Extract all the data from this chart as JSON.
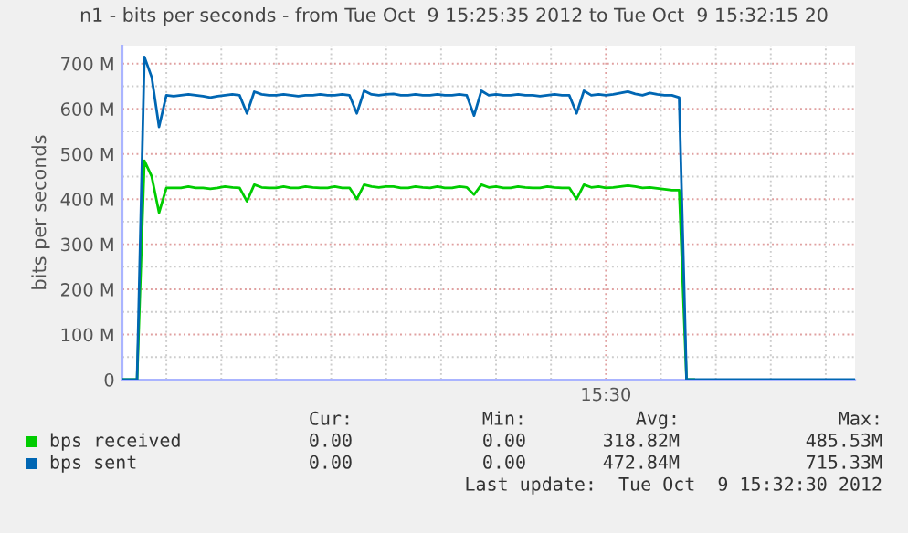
{
  "chart_data": {
    "type": "line",
    "title": "n1 - bits per seconds - from Tue Oct  9 15:25:35 2012 to Tue Oct  9 15:32:15 20",
    "ylabel": "bits per seconds",
    "categories": [
      null,
      null,
      null,
      null,
      null,
      null,
      null,
      null,
      null,
      null,
      null,
      null,
      null,
      null,
      null,
      null,
      null,
      null,
      null,
      null,
      null,
      null,
      null,
      null,
      null,
      null,
      null,
      null,
      null,
      null,
      null,
      null,
      null,
      null,
      null,
      null,
      null,
      null,
      null,
      null,
      null,
      null,
      null,
      null,
      null,
      null,
      null,
      null,
      null,
      null,
      null,
      null,
      null,
      null,
      null,
      null,
      null,
      null,
      null,
      null,
      null,
      null,
      null,
      null,
      null,
      null,
      "15:30",
      null,
      null,
      null,
      null,
      null,
      null,
      null,
      null,
      null,
      null,
      null,
      null,
      null,
      null,
      null,
      null,
      null,
      null,
      null,
      null,
      null,
      null,
      null,
      null,
      null,
      null,
      null,
      null,
      null,
      null,
      null,
      null,
      null,
      null
    ],
    "ylim": [
      0,
      740
    ],
    "yticks": [
      {
        "value": 0,
        "label": "0"
      },
      {
        "value": 50,
        "label": null
      },
      {
        "value": 100,
        "label": "100 M"
      },
      {
        "value": 150,
        "label": null
      },
      {
        "value": 200,
        "label": "200 M"
      },
      {
        "value": 250,
        "label": null
      },
      {
        "value": 300,
        "label": "300 M"
      },
      {
        "value": 350,
        "label": null
      },
      {
        "value": 400,
        "label": "400 M"
      },
      {
        "value": 450,
        "label": null
      },
      {
        "value": 500,
        "label": "500 M"
      },
      {
        "value": 550,
        "label": null
      },
      {
        "value": 600,
        "label": "600 M"
      },
      {
        "value": 650,
        "label": null
      },
      {
        "value": 700,
        "label": "700 M"
      }
    ],
    "series": [
      {
        "name": "bps received",
        "color": "#00cc00",
        "values": [
          0,
          0,
          0,
          485,
          450,
          370,
          425,
          425,
          425,
          428,
          425,
          425,
          423,
          425,
          428,
          426,
          425,
          395,
          432,
          426,
          425,
          425,
          428,
          425,
          425,
          428,
          426,
          425,
          425,
          428,
          425,
          425,
          400,
          432,
          428,
          426,
          428,
          428,
          425,
          425,
          428,
          426,
          425,
          428,
          425,
          425,
          428,
          426,
          410,
          432,
          426,
          428,
          425,
          425,
          428,
          426,
          425,
          425,
          428,
          426,
          425,
          425,
          400,
          432,
          426,
          428,
          425,
          426,
          428,
          430,
          428,
          425,
          426,
          424,
          422,
          420,
          420,
          0,
          0,
          null,
          null,
          null,
          null,
          null,
          null,
          null,
          null,
          null,
          null,
          null,
          null,
          null,
          null,
          null,
          null,
          null,
          null,
          null,
          null,
          null,
          null
        ]
      },
      {
        "name": "bps sent",
        "color": "#0066b3",
        "values": [
          0,
          0,
          0,
          715,
          670,
          560,
          630,
          628,
          630,
          632,
          630,
          628,
          625,
          628,
          630,
          632,
          630,
          590,
          638,
          632,
          630,
          630,
          632,
          630,
          628,
          630,
          630,
          632,
          630,
          630,
          632,
          630,
          590,
          640,
          632,
          630,
          632,
          633,
          630,
          630,
          632,
          630,
          630,
          632,
          630,
          630,
          632,
          630,
          585,
          640,
          630,
          632,
          630,
          630,
          632,
          630,
          630,
          628,
          630,
          632,
          630,
          630,
          590,
          640,
          630,
          632,
          630,
          632,
          635,
          638,
          633,
          630,
          635,
          632,
          630,
          630,
          625,
          0,
          0,
          0,
          0,
          0,
          0,
          0,
          0,
          0,
          0,
          0,
          0,
          0,
          0,
          0,
          0,
          0,
          0,
          0,
          0,
          0,
          0,
          0,
          0
        ]
      }
    ],
    "grid": true,
    "legend": "bottom",
    "marker": "none",
    "line_style": "solid",
    "annotations": [
      "Cur:",
      "Min:",
      "Avg:",
      "Max:",
      "0.00",
      "0.00",
      "318.82M",
      "485.53M",
      "0.00",
      "0.00",
      "472.84M",
      "715.33M",
      "Last update:  Tue Oct  9 15:32:30 2012"
    ]
  }
}
